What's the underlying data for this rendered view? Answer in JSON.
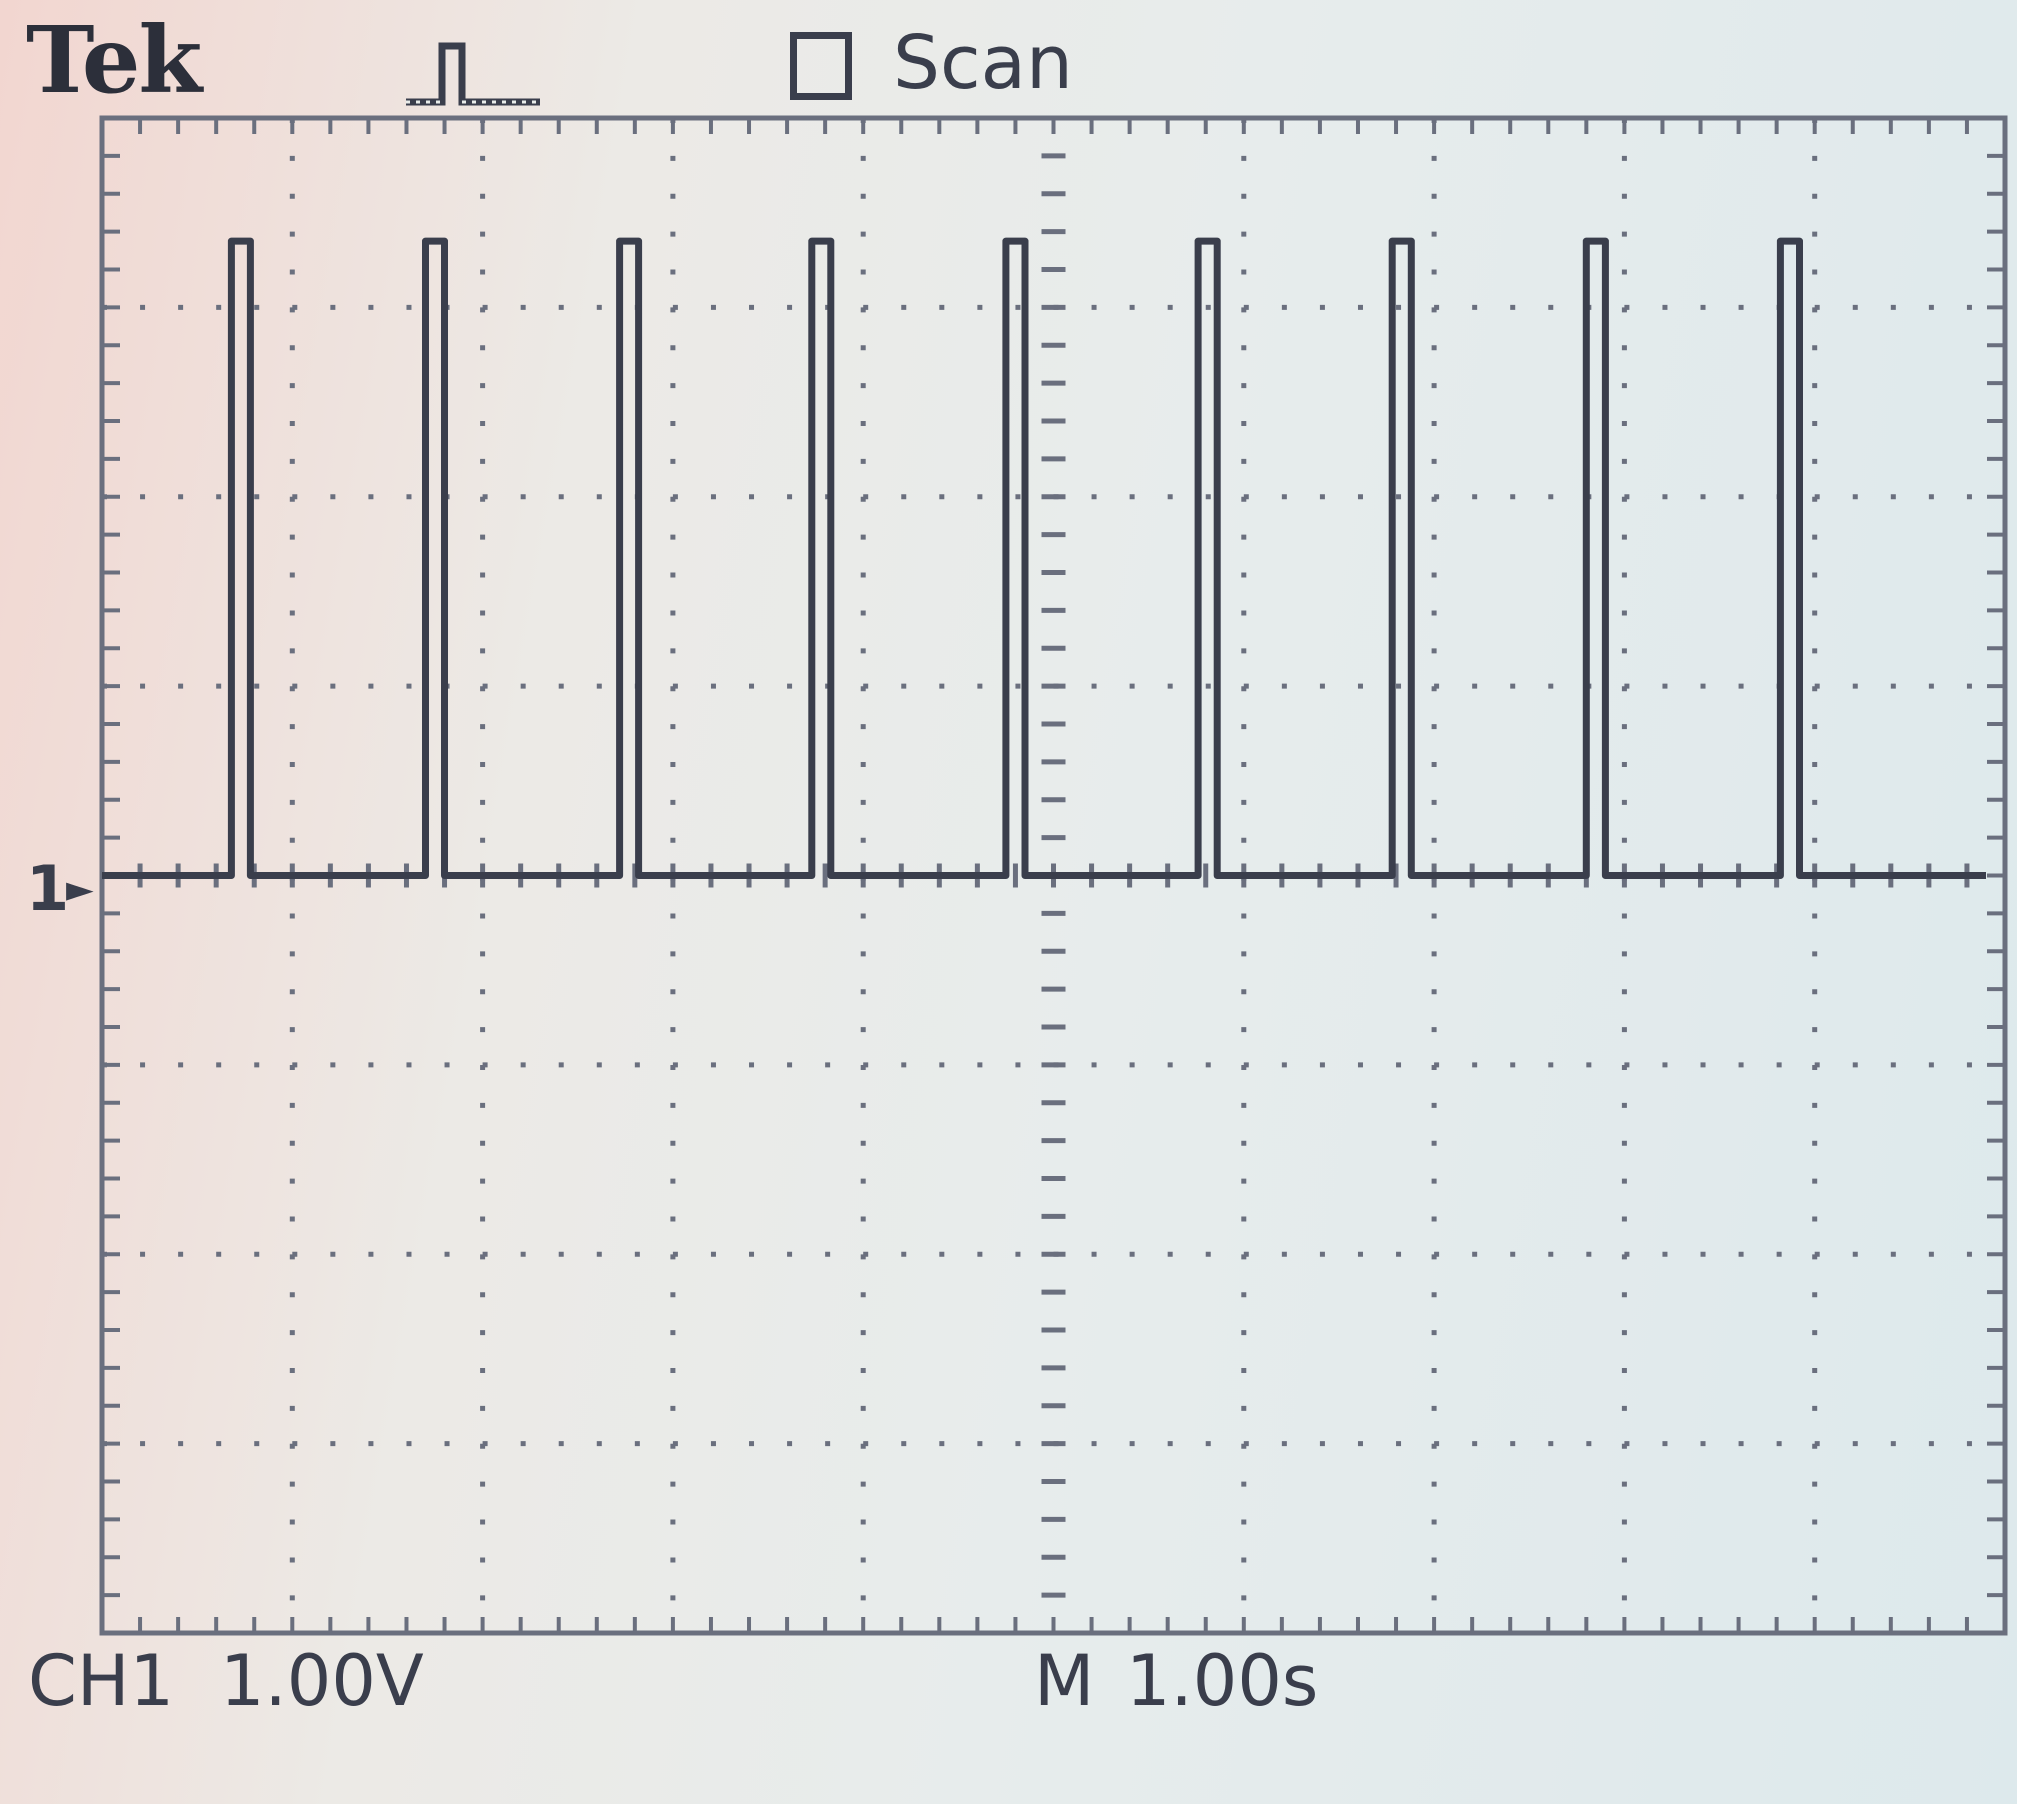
{
  "header": {
    "brand": "Tek",
    "trigger_icon": "pulse-trigger-icon",
    "acquisition_mode": "Scan"
  },
  "channel_marker": {
    "label": "1",
    "arrow_icon": "ground-level-arrow-icon"
  },
  "footer": {
    "channel": "CH1",
    "volts_per_div": "1.00V",
    "timebase_label": "M",
    "time_per_div": "1.00s"
  },
  "colors": {
    "trace": "#3a3e4c",
    "graticule": "#6a6f7e",
    "background": "#e6ebea"
  },
  "chart_data": {
    "type": "line",
    "title": "",
    "xlabel": "",
    "ylabel": "",
    "x_unit": "s",
    "y_unit": "V",
    "xlim": [
      0,
      10
    ],
    "ylim": [
      -4,
      4
    ],
    "grid": true,
    "divisions": {
      "x": 10,
      "y": 8
    },
    "baseline_v": 0,
    "pulse_amplitude_v": 3.35,
    "pulse_width_s": 0.1,
    "pulse_starts_s": [
      0.68,
      1.7,
      2.72,
      3.73,
      4.75,
      5.76,
      6.78,
      7.8,
      8.82
    ],
    "trace_end_s": 9.9
  }
}
